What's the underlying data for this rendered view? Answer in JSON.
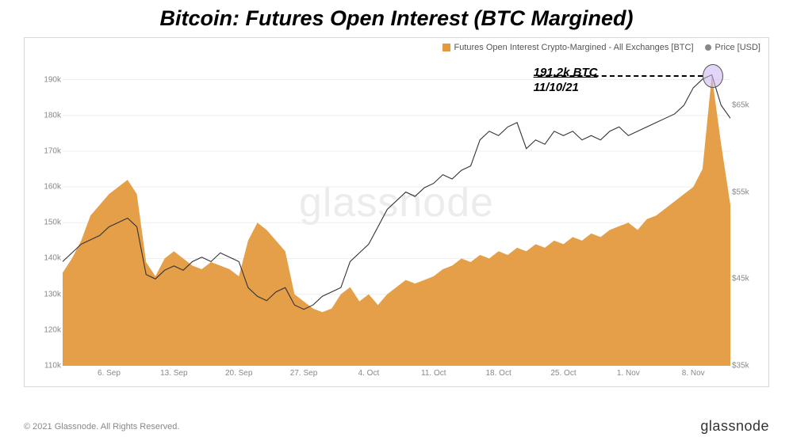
{
  "title": "Bitcoin: Futures Open Interest (BTC Margined)",
  "legend": {
    "area": {
      "label": "Futures Open Interest Crypto-Margined - All Exchanges [BTC]",
      "color": "#e39a3e"
    },
    "line": {
      "label": "Price [USD]",
      "color": "#888888"
    }
  },
  "chart": {
    "watermark": "glassnode",
    "background_color": "#ffffff",
    "grid_color": "#eeeeee",
    "y_left": {
      "min": 110000,
      "max": 195000,
      "ticks": [
        110000,
        120000,
        130000,
        140000,
        150000,
        160000,
        170000,
        180000,
        190000
      ],
      "tick_labels": [
        "110k",
        "120k",
        "130k",
        "140k",
        "150k",
        "160k",
        "170k",
        "180k",
        "190k"
      ]
    },
    "y_right": {
      "min": 35000,
      "max": 70000,
      "ticks": [
        35000,
        45000,
        55000,
        65000
      ],
      "tick_labels": [
        "$35k",
        "$45k",
        "$55k",
        "$65k"
      ]
    },
    "x": {
      "min": 0,
      "max": 72,
      "ticks": [
        5,
        12,
        19,
        26,
        33,
        40,
        47,
        54,
        61,
        68
      ],
      "tick_labels": [
        "6. Sep",
        "13. Sep",
        "20. Sep",
        "27. Sep",
        "4. Oct",
        "11. Oct",
        "18. Oct",
        "25. Oct",
        "1. Nov",
        "8. Nov"
      ]
    },
    "area_series": {
      "color": "#e39a3e",
      "fill_opacity": 0.95,
      "data": [
        [
          0,
          136000
        ],
        [
          1,
          140000
        ],
        [
          2,
          145000
        ],
        [
          3,
          152000
        ],
        [
          4,
          155000
        ],
        [
          5,
          158000
        ],
        [
          6,
          160000
        ],
        [
          7,
          162000
        ],
        [
          8,
          158000
        ],
        [
          9,
          139000
        ],
        [
          10,
          135000
        ],
        [
          11,
          140000
        ],
        [
          12,
          142000
        ],
        [
          13,
          140000
        ],
        [
          14,
          138000
        ],
        [
          15,
          137000
        ],
        [
          16,
          139000
        ],
        [
          17,
          138000
        ],
        [
          18,
          137000
        ],
        [
          19,
          135000
        ],
        [
          20,
          145000
        ],
        [
          21,
          150000
        ],
        [
          22,
          148000
        ],
        [
          23,
          145000
        ],
        [
          24,
          142000
        ],
        [
          25,
          130000
        ],
        [
          26,
          128000
        ],
        [
          27,
          126000
        ],
        [
          28,
          125000
        ],
        [
          29,
          126000
        ],
        [
          30,
          130000
        ],
        [
          31,
          132000
        ],
        [
          32,
          128000
        ],
        [
          33,
          130000
        ],
        [
          34,
          127000
        ],
        [
          35,
          130000
        ],
        [
          36,
          132000
        ],
        [
          37,
          134000
        ],
        [
          38,
          133000
        ],
        [
          39,
          134000
        ],
        [
          40,
          135000
        ],
        [
          41,
          137000
        ],
        [
          42,
          138000
        ],
        [
          43,
          140000
        ],
        [
          44,
          139000
        ],
        [
          45,
          141000
        ],
        [
          46,
          140000
        ],
        [
          47,
          142000
        ],
        [
          48,
          141000
        ],
        [
          49,
          143000
        ],
        [
          50,
          142000
        ],
        [
          51,
          144000
        ],
        [
          52,
          143000
        ],
        [
          53,
          145000
        ],
        [
          54,
          144000
        ],
        [
          55,
          146000
        ],
        [
          56,
          145000
        ],
        [
          57,
          147000
        ],
        [
          58,
          146000
        ],
        [
          59,
          148000
        ],
        [
          60,
          149000
        ],
        [
          61,
          150000
        ],
        [
          62,
          148000
        ],
        [
          63,
          151000
        ],
        [
          64,
          152000
        ],
        [
          65,
          154000
        ],
        [
          66,
          156000
        ],
        [
          67,
          158000
        ],
        [
          68,
          160000
        ],
        [
          69,
          165000
        ],
        [
          70,
          191200
        ],
        [
          71,
          172000
        ],
        [
          72,
          155000
        ]
      ]
    },
    "price_series": {
      "color": "#333333",
      "line_width": 1.1,
      "data": [
        [
          0,
          47000
        ],
        [
          1,
          48000
        ],
        [
          2,
          49000
        ],
        [
          3,
          49500
        ],
        [
          4,
          50000
        ],
        [
          5,
          51000
        ],
        [
          6,
          51500
        ],
        [
          7,
          52000
        ],
        [
          8,
          51000
        ],
        [
          9,
          45500
        ],
        [
          10,
          45000
        ],
        [
          11,
          46000
        ],
        [
          12,
          46500
        ],
        [
          13,
          46000
        ],
        [
          14,
          47000
        ],
        [
          15,
          47500
        ],
        [
          16,
          47000
        ],
        [
          17,
          48000
        ],
        [
          18,
          47500
        ],
        [
          19,
          47000
        ],
        [
          20,
          44000
        ],
        [
          21,
          43000
        ],
        [
          22,
          42500
        ],
        [
          23,
          43500
        ],
        [
          24,
          44000
        ],
        [
          25,
          42000
        ],
        [
          26,
          41500
        ],
        [
          27,
          42000
        ],
        [
          28,
          43000
        ],
        [
          29,
          43500
        ],
        [
          30,
          44000
        ],
        [
          31,
          47000
        ],
        [
          32,
          48000
        ],
        [
          33,
          49000
        ],
        [
          34,
          51000
        ],
        [
          35,
          53000
        ],
        [
          36,
          54000
        ],
        [
          37,
          55000
        ],
        [
          38,
          54500
        ],
        [
          39,
          55500
        ],
        [
          40,
          56000
        ],
        [
          41,
          57000
        ],
        [
          42,
          56500
        ],
        [
          43,
          57500
        ],
        [
          44,
          58000
        ],
        [
          45,
          61000
        ],
        [
          46,
          62000
        ],
        [
          47,
          61500
        ],
        [
          48,
          62500
        ],
        [
          49,
          63000
        ],
        [
          50,
          60000
        ],
        [
          51,
          61000
        ],
        [
          52,
          60500
        ],
        [
          53,
          62000
        ],
        [
          54,
          61500
        ],
        [
          55,
          62000
        ],
        [
          56,
          61000
        ],
        [
          57,
          61500
        ],
        [
          58,
          61000
        ],
        [
          59,
          62000
        ],
        [
          60,
          62500
        ],
        [
          61,
          61500
        ],
        [
          62,
          62000
        ],
        [
          63,
          62500
        ],
        [
          64,
          63000
        ],
        [
          65,
          63500
        ],
        [
          66,
          64000
        ],
        [
          67,
          65000
        ],
        [
          68,
          67000
        ],
        [
          69,
          68000
        ],
        [
          70,
          68500
        ],
        [
          71,
          65000
        ],
        [
          72,
          63500
        ]
      ]
    },
    "annotation": {
      "value_text": "191.2k BTC",
      "date_text": "11/10/21",
      "x": 70,
      "y_value": 191200,
      "circle_color": "#c8b4f0"
    }
  },
  "footer": {
    "copyright": "© 2021 Glassnode. All Rights Reserved.",
    "brand": "glassnode"
  }
}
